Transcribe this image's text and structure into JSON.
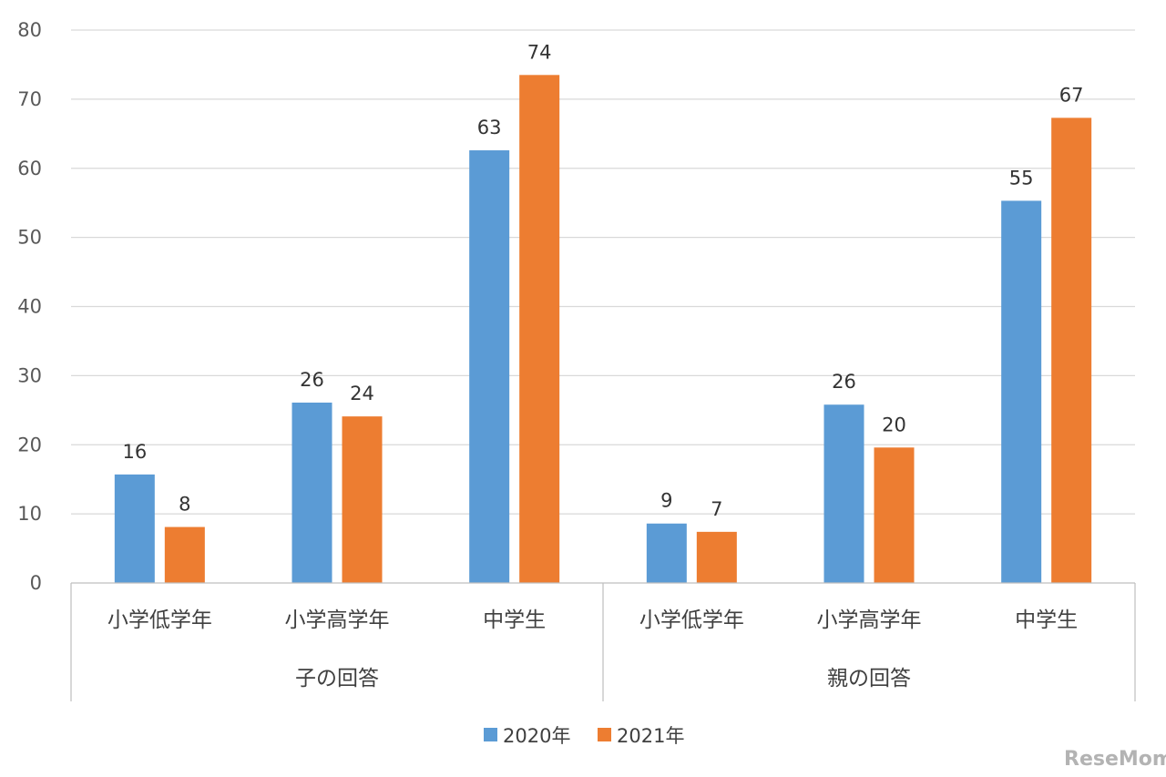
{
  "chart_data": {
    "type": "bar",
    "ylim": [
      0,
      80
    ],
    "yticks": [
      0,
      10,
      20,
      30,
      40,
      50,
      60,
      70,
      80
    ],
    "grid": true,
    "legend_position": "bottom",
    "groups": [
      {
        "label": "子の回答",
        "categories": [
          "小学低学年",
          "小学高学年",
          "中学生"
        ]
      },
      {
        "label": "親の回答",
        "categories": [
          "小学低学年",
          "小学高学年",
          "中学生"
        ]
      }
    ],
    "series": [
      {
        "name": "2020年",
        "color": "#5b9bd5",
        "values": [
          15.7,
          26.1,
          62.6,
          8.6,
          25.8,
          55.3
        ],
        "labels": [
          "16",
          "26",
          "63",
          "9",
          "26",
          "55"
        ]
      },
      {
        "name": "2021年",
        "color": "#ed7d31",
        "values": [
          8.1,
          24.1,
          73.5,
          7.4,
          19.6,
          67.3
        ],
        "labels": [
          "8",
          "24",
          "74",
          "7",
          "20",
          "67"
        ]
      }
    ]
  },
  "watermark": {
    "text": "ReseMom"
  }
}
